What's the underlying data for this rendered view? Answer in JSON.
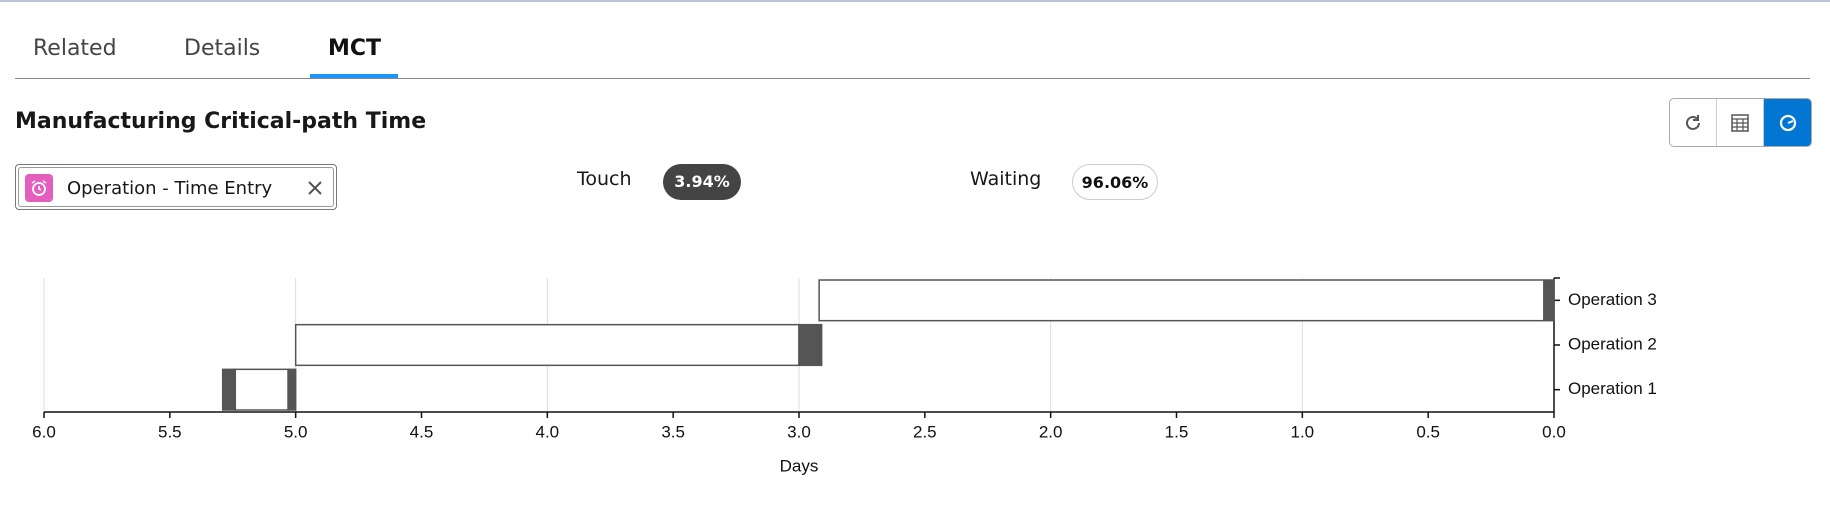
{
  "tabs": [
    "Related",
    "Details",
    "MCT"
  ],
  "header": {
    "title": "Manufacturing Critical-path Time"
  },
  "filter": {
    "label": "Operation - Time Entry"
  },
  "summary": {
    "touch_label": "Touch",
    "touch_value": "3.94%",
    "waiting_label": "Waiting",
    "waiting_value": "96.06%"
  },
  "chart_data": {
    "type": "gantt",
    "x_label": "Days",
    "xlim": [
      6,
      0
    ],
    "xticks": [
      {
        "value": 6,
        "label": "6.0"
      },
      5.5,
      {
        "value": 5,
        "label": "5.0"
      },
      4.5,
      {
        "value": 4,
        "label": "4.0"
      },
      3.5,
      {
        "value": 3,
        "label": "3.0"
      },
      2.5,
      {
        "value": 2,
        "label": "2.0"
      },
      1.5,
      {
        "value": 1,
        "label": "1.0"
      },
      0.5,
      {
        "value": 0,
        "label": "0.0"
      }
    ],
    "grid": true,
    "touch_color": "#555555",
    "waiting_color": "#ffffff",
    "tasks": [
      {
        "label": "Operation 1",
        "touch": [
          [
            5.29,
            5.24
          ],
          [
            5.03,
            5.0
          ]
        ],
        "waiting": [
          [
            5.24,
            5.03
          ]
        ]
      },
      {
        "label": "Operation 2",
        "touch": [
          [
            3.0,
            2.91
          ]
        ],
        "waiting": [
          [
            5.0,
            3.0
          ]
        ]
      },
      {
        "label": "Operation 3",
        "touch": [
          [
            0.04,
            0.0
          ]
        ],
        "waiting": [
          [
            2.92,
            0.04
          ]
        ]
      }
    ]
  }
}
